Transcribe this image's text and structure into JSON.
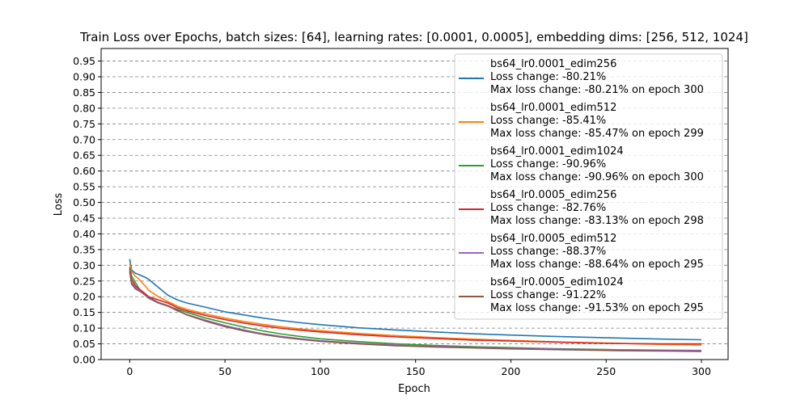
{
  "chart_data": {
    "type": "line",
    "title": "Train Loss over Epochs, batch sizes: [64], learning rates: [0.0001, 0.0005], embedding dims: [256, 512, 1024]",
    "xlabel": "Epoch",
    "ylabel": "Loss",
    "xlim": [
      -15,
      314
    ],
    "ylim": [
      0,
      0.99
    ],
    "xticks": [
      0,
      50,
      100,
      150,
      200,
      250,
      300
    ],
    "yticks": [
      0.0,
      0.05,
      0.1,
      0.15,
      0.2,
      0.25,
      0.3,
      0.35,
      0.4,
      0.45,
      0.5,
      0.55,
      0.6,
      0.65,
      0.7,
      0.75,
      0.8,
      0.85,
      0.9,
      0.95
    ],
    "ytick_labels": [
      "0.00",
      "0.05",
      "0.10",
      "0.15",
      "0.20",
      "0.25",
      "0.30",
      "0.35",
      "0.40",
      "0.45",
      "0.50",
      "0.55",
      "0.60",
      "0.65",
      "0.70",
      "0.75",
      "0.80",
      "0.85",
      "0.90",
      "0.95"
    ],
    "grid": "horizontal dashed",
    "legend_position": "upper right",
    "series": [
      {
        "name": "bs64_lr0.0001_edim256",
        "legend_lines": [
          "bs64_lr0.0001_edim256",
          "Loss change: -80.21%",
          "Max loss change: -80.21% on epoch 300"
        ],
        "color": "#1f77b4",
        "x": [
          0,
          1,
          3,
          5,
          8,
          10,
          15,
          20,
          25,
          30,
          40,
          50,
          60,
          70,
          80,
          90,
          100,
          120,
          140,
          160,
          180,
          200,
          220,
          240,
          260,
          280,
          300
        ],
        "y": [
          0.32,
          0.285,
          0.275,
          0.27,
          0.262,
          0.255,
          0.23,
          0.205,
          0.19,
          0.18,
          0.166,
          0.152,
          0.142,
          0.132,
          0.124,
          0.117,
          0.111,
          0.101,
          0.094,
          0.088,
          0.082,
          0.078,
          0.074,
          0.071,
          0.068,
          0.065,
          0.063
        ]
      },
      {
        "name": "bs64_lr0.0001_edim512",
        "legend_lines": [
          "bs64_lr0.0001_edim512",
          "Loss change: -85.41%",
          "Max loss change: -85.47% on epoch 299"
        ],
        "color": "#ff7f0e",
        "x": [
          0,
          1,
          3,
          5,
          8,
          10,
          15,
          20,
          25,
          30,
          40,
          50,
          60,
          70,
          80,
          90,
          100,
          120,
          140,
          160,
          180,
          200,
          220,
          240,
          260,
          280,
          300
        ],
        "y": [
          0.305,
          0.28,
          0.265,
          0.255,
          0.235,
          0.22,
          0.2,
          0.185,
          0.17,
          0.16,
          0.145,
          0.132,
          0.121,
          0.112,
          0.104,
          0.097,
          0.092,
          0.083,
          0.076,
          0.07,
          0.065,
          0.061,
          0.057,
          0.054,
          0.051,
          0.048,
          0.046
        ]
      },
      {
        "name": "bs64_lr0.0001_edim1024",
        "legend_lines": [
          "bs64_lr0.0001_edim1024",
          "Loss change: -90.96%",
          "Max loss change: -90.96% on epoch 300"
        ],
        "color": "#2ca02c",
        "x": [
          0,
          1,
          3,
          5,
          8,
          10,
          15,
          20,
          25,
          30,
          40,
          50,
          60,
          70,
          80,
          90,
          100,
          120,
          140,
          160,
          180,
          200,
          220,
          240,
          260,
          280,
          300
        ],
        "y": [
          0.295,
          0.265,
          0.245,
          0.225,
          0.205,
          0.195,
          0.18,
          0.17,
          0.16,
          0.15,
          0.132,
          0.117,
          0.103,
          0.091,
          0.081,
          0.073,
          0.066,
          0.057,
          0.05,
          0.045,
          0.041,
          0.038,
          0.035,
          0.033,
          0.031,
          0.029,
          0.028
        ]
      },
      {
        "name": "bs64_lr0.0005_edim256",
        "legend_lines": [
          "bs64_lr0.0005_edim256",
          "Loss change: -82.76%",
          "Max loss change: -83.13% on epoch 298"
        ],
        "color": "#d62728",
        "x": [
          0,
          1,
          3,
          5,
          8,
          10,
          15,
          20,
          25,
          30,
          40,
          50,
          60,
          70,
          80,
          90,
          100,
          120,
          140,
          160,
          180,
          200,
          220,
          240,
          260,
          280,
          300
        ],
        "y": [
          0.29,
          0.255,
          0.235,
          0.225,
          0.21,
          0.2,
          0.19,
          0.18,
          0.165,
          0.155,
          0.14,
          0.127,
          0.116,
          0.107,
          0.099,
          0.093,
          0.088,
          0.079,
          0.072,
          0.067,
          0.062,
          0.059,
          0.056,
          0.053,
          0.051,
          0.05,
          0.05
        ]
      },
      {
        "name": "bs64_lr0.0005_edim512",
        "legend_lines": [
          "bs64_lr0.0005_edim512",
          "Loss change: -88.37%",
          "Max loss change: -88.64% on epoch 295"
        ],
        "color": "#9467bd",
        "x": [
          0,
          1,
          3,
          5,
          8,
          10,
          15,
          20,
          25,
          30,
          40,
          50,
          60,
          70,
          80,
          90,
          100,
          120,
          140,
          160,
          180,
          200,
          220,
          240,
          260,
          280,
          300
        ],
        "y": [
          0.285,
          0.245,
          0.23,
          0.22,
          0.205,
          0.195,
          0.18,
          0.17,
          0.155,
          0.143,
          0.125,
          0.108,
          0.094,
          0.082,
          0.073,
          0.066,
          0.06,
          0.052,
          0.046,
          0.042,
          0.039,
          0.036,
          0.034,
          0.032,
          0.031,
          0.03,
          0.029
        ]
      },
      {
        "name": "bs64_lr0.0005_edim1024",
        "legend_lines": [
          "bs64_lr0.0005_edim1024",
          "Loss change: -91.22%",
          "Max loss change: -91.53% on epoch 295"
        ],
        "color": "#8c564b",
        "x": [
          0,
          1,
          3,
          5,
          8,
          10,
          15,
          20,
          25,
          30,
          40,
          50,
          60,
          70,
          80,
          90,
          100,
          120,
          140,
          160,
          180,
          200,
          220,
          240,
          260,
          280,
          300
        ],
        "y": [
          0.28,
          0.24,
          0.225,
          0.218,
          0.208,
          0.198,
          0.182,
          0.172,
          0.157,
          0.142,
          0.122,
          0.105,
          0.091,
          0.08,
          0.071,
          0.064,
          0.058,
          0.05,
          0.044,
          0.04,
          0.037,
          0.034,
          0.032,
          0.03,
          0.028,
          0.027,
          0.026
        ]
      }
    ]
  }
}
